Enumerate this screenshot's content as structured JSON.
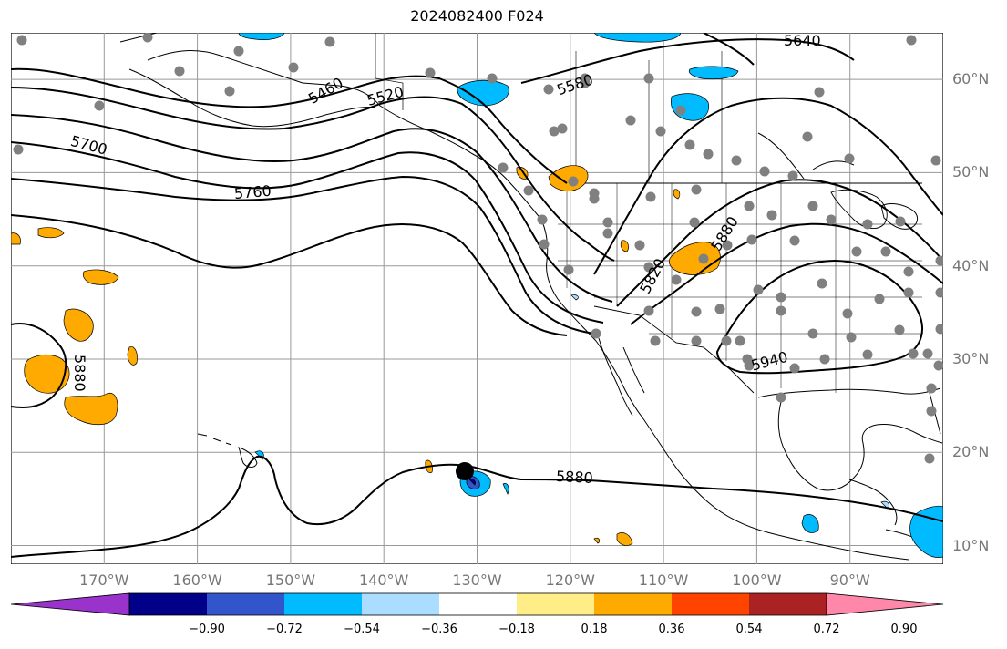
{
  "title": "2024082400 F024",
  "map": {
    "lon_range": [
      -180,
      -80
    ],
    "lat_range": [
      8,
      65
    ],
    "grid": true,
    "lon_ticks": [
      "170°W",
      "160°W",
      "150°W",
      "140°W",
      "130°W",
      "120°W",
      "110°W",
      "100°W",
      "90°W"
    ],
    "lon_tick_values": [
      -170,
      -160,
      -150,
      -140,
      -130,
      -120,
      -110,
      -100,
      -90
    ],
    "lat_ticks": [
      "60°N",
      "50°N",
      "40°N",
      "30°N",
      "20°N",
      "10°N"
    ],
    "lat_tick_values": [
      60,
      50,
      40,
      30,
      20,
      10
    ],
    "contour_labels": [
      "5640",
      "5460",
      "5520",
      "5580",
      "5700",
      "5760",
      "5820",
      "5880",
      "5940",
      "5880",
      "5880"
    ],
    "colorbar": {
      "ticks": [
        "−0.90",
        "−0.72",
        "−0.54",
        "−0.36",
        "−0.18",
        "0.18",
        "0.36",
        "0.54",
        "0.72",
        "0.90"
      ],
      "colors": [
        "#9933cc",
        "#000088",
        "#3355cc",
        "#00bbff",
        "#aaddff",
        "#ffffff",
        "#ffee88",
        "#ffaa00",
        "#ff4400",
        "#aa2222",
        "#ff88aa"
      ]
    }
  }
}
